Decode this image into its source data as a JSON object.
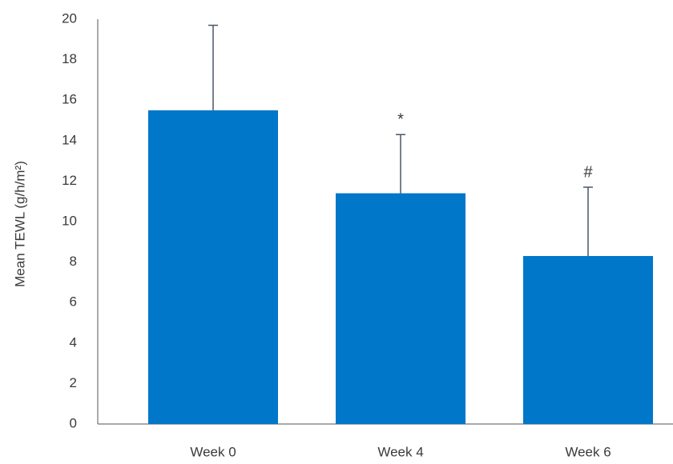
{
  "chart_data": {
    "type": "bar",
    "y_label": "Mean TEWL (g/h/m²)",
    "categories": [
      "Week 0",
      "Week 4",
      "Week 6"
    ],
    "values": [
      15.5,
      11.4,
      8.3
    ],
    "errors": [
      4.2,
      2.9,
      3.4
    ],
    "markers": [
      null,
      "*",
      "#"
    ],
    "color": "#0077c8",
    "error_color": "#4a5566",
    "ylim": [
      0,
      20
    ],
    "yticks": [
      0,
      2,
      4,
      6,
      8,
      10,
      12,
      14,
      16,
      18,
      20
    ],
    "grid": false
  }
}
